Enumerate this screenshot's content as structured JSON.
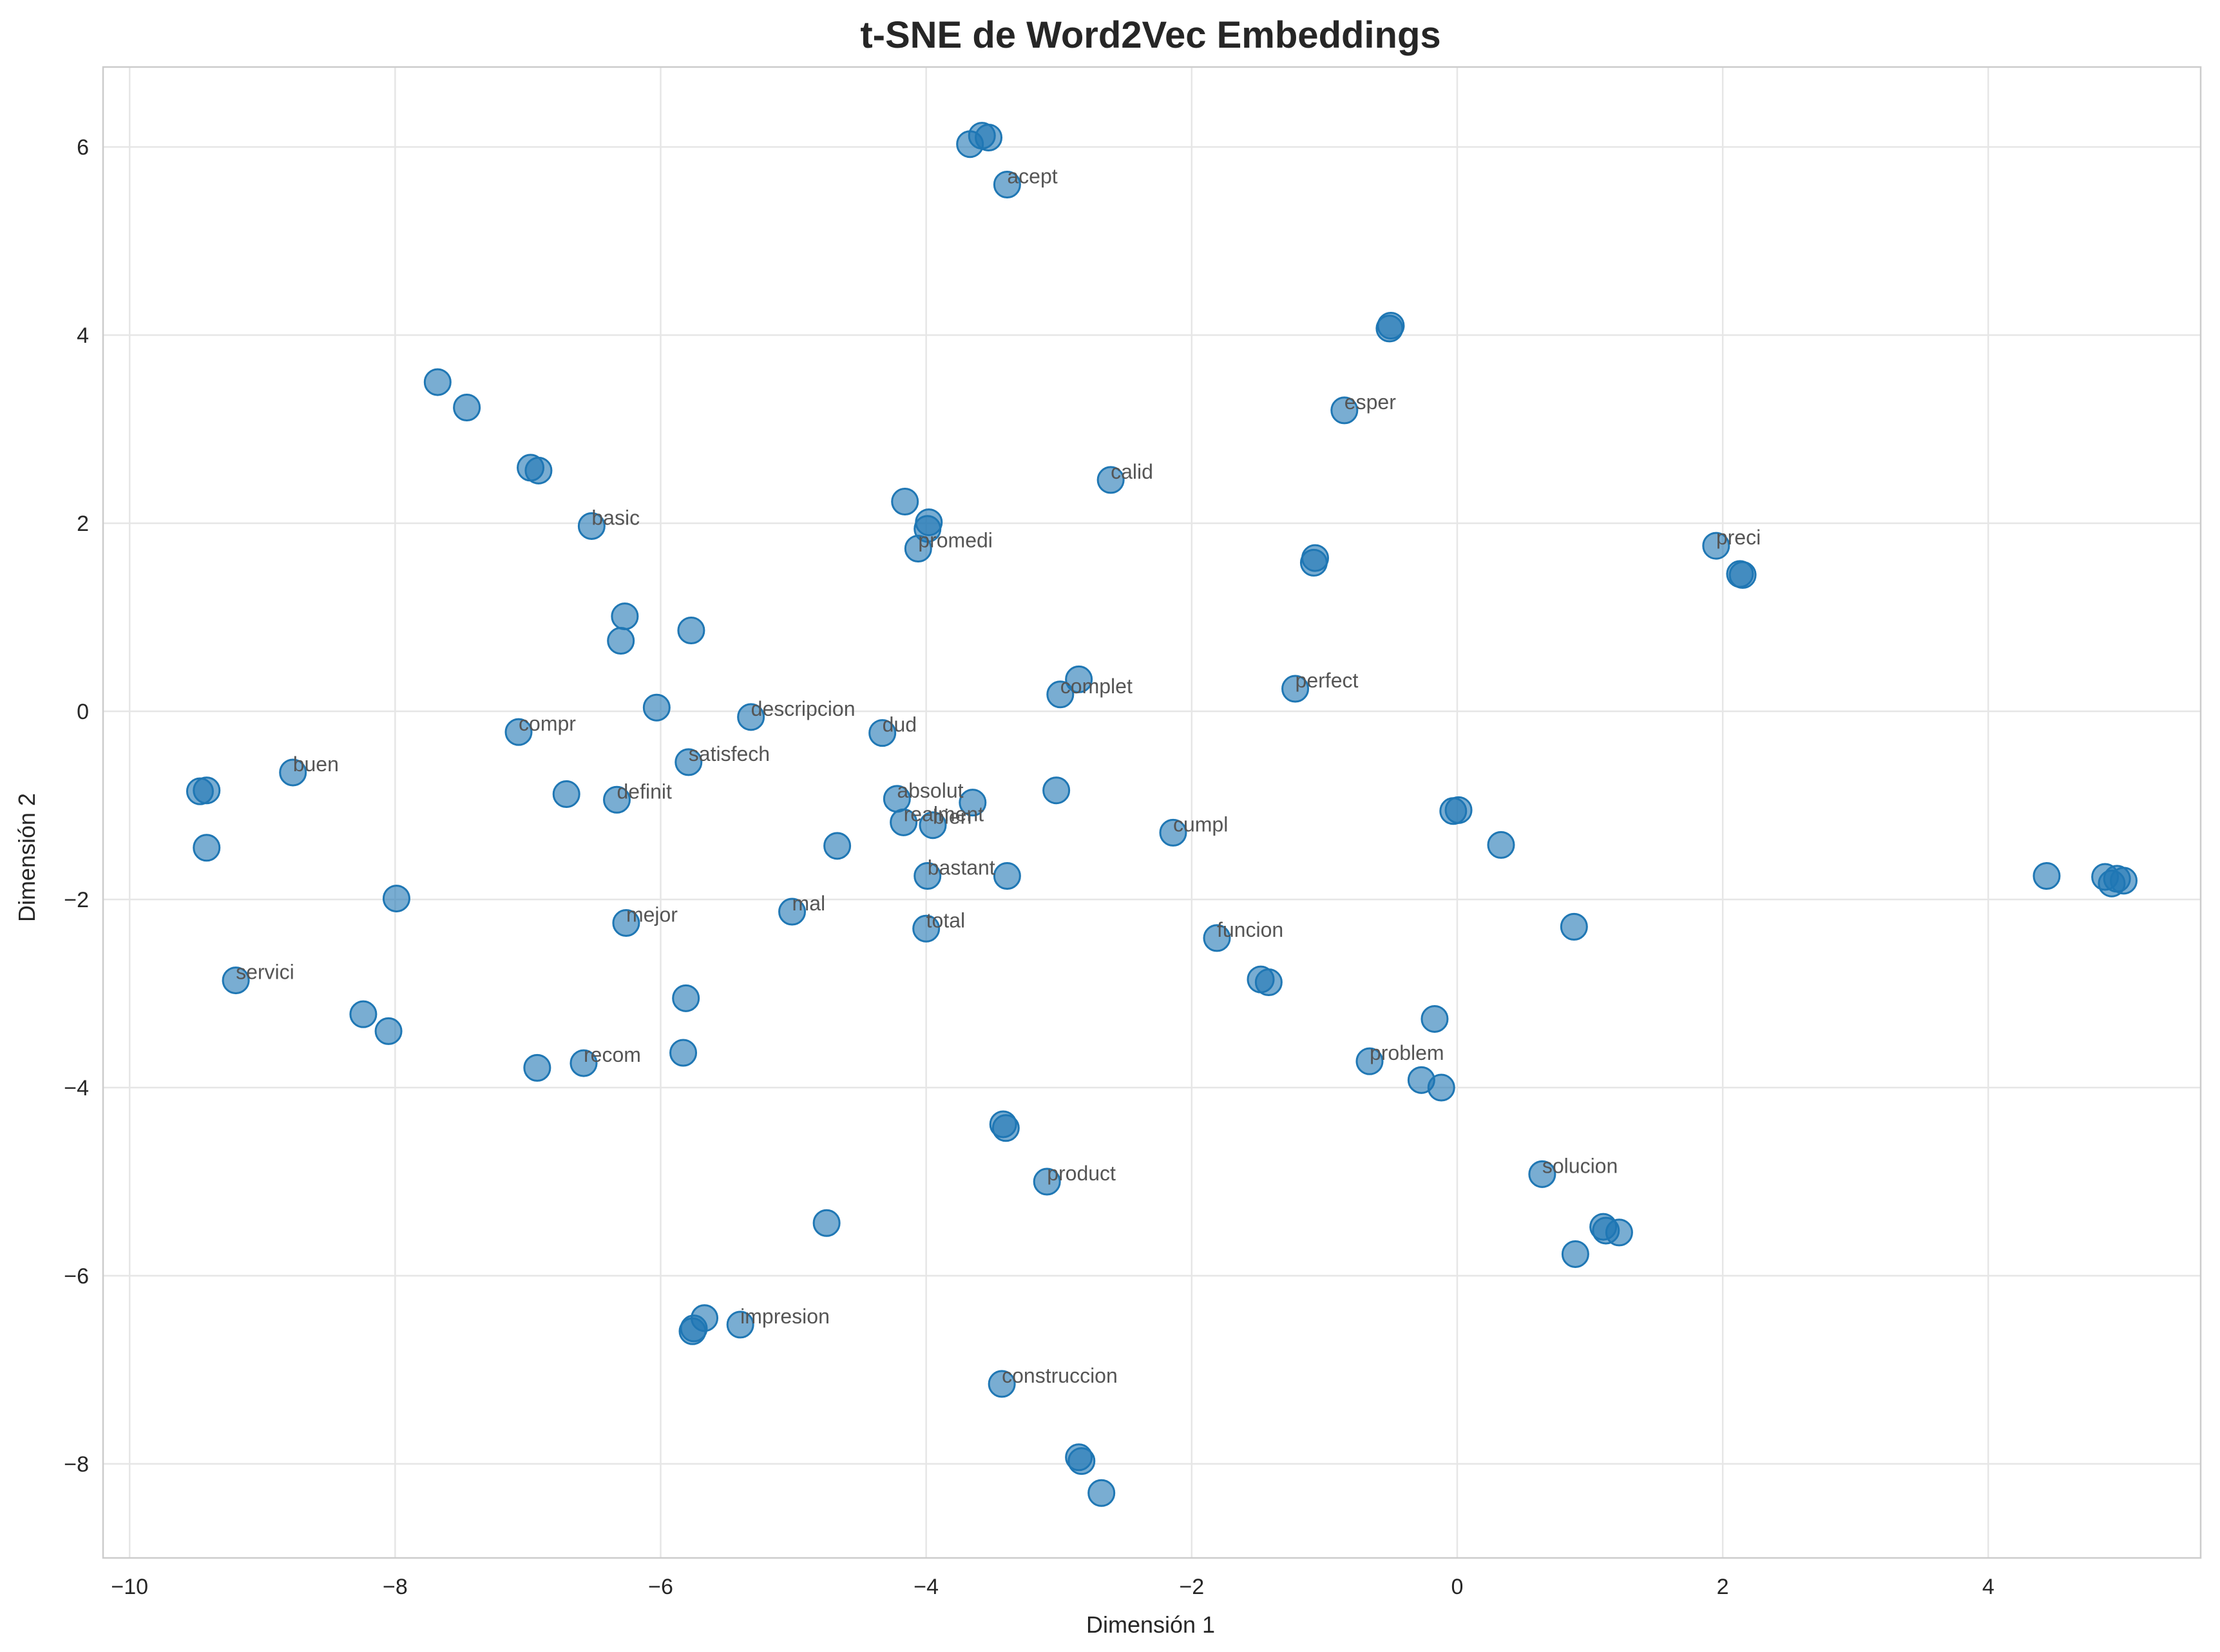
{
  "chart_data": {
    "type": "scatter",
    "title": "t-SNE de Word2Vec Embeddings",
    "xlabel": "Dimensión 1",
    "ylabel": "Dimensión 2",
    "xlim": [
      -10.2,
      5.6
    ],
    "ylim": [
      -9.0,
      6.85
    ],
    "xticks": [
      -10,
      -8,
      -6,
      -4,
      -2,
      0,
      2,
      4
    ],
    "yticks": [
      -8,
      -6,
      -4,
      -2,
      0,
      2,
      4,
      6
    ],
    "grid": true,
    "legend": "none",
    "point_color": "#1f77b4",
    "label_color": "#555555",
    "points": [
      {
        "x": -3.67,
        "y": 6.03,
        "label": ""
      },
      {
        "x": -3.58,
        "y": 6.12,
        "label": ""
      },
      {
        "x": -3.53,
        "y": 6.1,
        "label": ""
      },
      {
        "x": -3.39,
        "y": 5.6,
        "label": "acept"
      },
      {
        "x": -0.5,
        "y": 4.1,
        "label": ""
      },
      {
        "x": -0.51,
        "y": 4.07,
        "label": ""
      },
      {
        "x": -7.68,
        "y": 3.5,
        "label": ""
      },
      {
        "x": -7.46,
        "y": 3.23,
        "label": ""
      },
      {
        "x": -0.85,
        "y": 3.2,
        "label": "esper"
      },
      {
        "x": -6.98,
        "y": 2.59,
        "label": ""
      },
      {
        "x": -6.92,
        "y": 2.56,
        "label": ""
      },
      {
        "x": -2.61,
        "y": 2.46,
        "label": "calid"
      },
      {
        "x": -4.16,
        "y": 2.23,
        "label": ""
      },
      {
        "x": -3.98,
        "y": 2.01,
        "label": ""
      },
      {
        "x": -3.99,
        "y": 1.94,
        "label": ""
      },
      {
        "x": -6.52,
        "y": 1.97,
        "label": "basic"
      },
      {
        "x": -4.06,
        "y": 1.73,
        "label": "promedi"
      },
      {
        "x": 1.95,
        "y": 1.76,
        "label": "preci"
      },
      {
        "x": -1.07,
        "y": 1.63,
        "label": ""
      },
      {
        "x": -1.08,
        "y": 1.58,
        "label": ""
      },
      {
        "x": 2.13,
        "y": 1.46,
        "label": ""
      },
      {
        "x": 2.15,
        "y": 1.45,
        "label": ""
      },
      {
        "x": -6.27,
        "y": 1.01,
        "label": ""
      },
      {
        "x": -5.77,
        "y": 0.86,
        "label": ""
      },
      {
        "x": -6.3,
        "y": 0.75,
        "label": ""
      },
      {
        "x": -2.85,
        "y": 0.34,
        "label": ""
      },
      {
        "x": -1.22,
        "y": 0.24,
        "label": "perfect"
      },
      {
        "x": -2.99,
        "y": 0.18,
        "label": "complet"
      },
      {
        "x": -6.03,
        "y": 0.04,
        "label": ""
      },
      {
        "x": -5.32,
        "y": -0.06,
        "label": "descripcion"
      },
      {
        "x": -7.07,
        "y": -0.22,
        "label": "compr"
      },
      {
        "x": -4.33,
        "y": -0.23,
        "label": "dud"
      },
      {
        "x": -5.79,
        "y": -0.54,
        "label": "satisfech"
      },
      {
        "x": -8.77,
        "y": -0.65,
        "label": "buen"
      },
      {
        "x": -9.47,
        "y": -0.85,
        "label": ""
      },
      {
        "x": -9.42,
        "y": -0.84,
        "label": ""
      },
      {
        "x": -6.71,
        "y": -0.88,
        "label": ""
      },
      {
        "x": -6.33,
        "y": -0.94,
        "label": "definit"
      },
      {
        "x": -3.02,
        "y": -0.84,
        "label": ""
      },
      {
        "x": -4.22,
        "y": -0.93,
        "label": "absolut"
      },
      {
        "x": -3.65,
        "y": -0.97,
        "label": ""
      },
      {
        "x": -4.17,
        "y": -1.18,
        "label": "realment"
      },
      {
        "x": -3.95,
        "y": -1.21,
        "label": "bien"
      },
      {
        "x": -0.03,
        "y": -1.06,
        "label": ""
      },
      {
        "x": 0.01,
        "y": -1.05,
        "label": ""
      },
      {
        "x": -2.14,
        "y": -1.29,
        "label": "cumpl"
      },
      {
        "x": -9.42,
        "y": -1.45,
        "label": ""
      },
      {
        "x": -4.67,
        "y": -1.43,
        "label": ""
      },
      {
        "x": 0.33,
        "y": -1.42,
        "label": ""
      },
      {
        "x": -3.99,
        "y": -1.75,
        "label": "bastant"
      },
      {
        "x": -3.39,
        "y": -1.75,
        "label": ""
      },
      {
        "x": 4.44,
        "y": -1.75,
        "label": ""
      },
      {
        "x": 4.88,
        "y": -1.76,
        "label": ""
      },
      {
        "x": 4.93,
        "y": -1.83,
        "label": ""
      },
      {
        "x": 4.97,
        "y": -1.78,
        "label": ""
      },
      {
        "x": 5.02,
        "y": -1.8,
        "label": ""
      },
      {
        "x": -7.99,
        "y": -1.99,
        "label": ""
      },
      {
        "x": -5.01,
        "y": -2.13,
        "label": "mal"
      },
      {
        "x": -6.26,
        "y": -2.25,
        "label": "mejor"
      },
      {
        "x": 0.88,
        "y": -2.29,
        "label": ""
      },
      {
        "x": -4.0,
        "y": -2.31,
        "label": "total"
      },
      {
        "x": -1.81,
        "y": -2.41,
        "label": "funcion"
      },
      {
        "x": -9.2,
        "y": -2.86,
        "label": "servici"
      },
      {
        "x": -1.48,
        "y": -2.85,
        "label": ""
      },
      {
        "x": -1.42,
        "y": -2.88,
        "label": ""
      },
      {
        "x": -5.81,
        "y": -3.05,
        "label": ""
      },
      {
        "x": -8.24,
        "y": -3.22,
        "label": ""
      },
      {
        "x": -0.17,
        "y": -3.27,
        "label": ""
      },
      {
        "x": -8.05,
        "y": -3.4,
        "label": ""
      },
      {
        "x": -5.83,
        "y": -3.63,
        "label": ""
      },
      {
        "x": -0.66,
        "y": -3.72,
        "label": "problem"
      },
      {
        "x": -6.58,
        "y": -3.74,
        "label": "recom"
      },
      {
        "x": -6.93,
        "y": -3.79,
        "label": ""
      },
      {
        "x": -0.27,
        "y": -3.92,
        "label": ""
      },
      {
        "x": -0.12,
        "y": -4.0,
        "label": ""
      },
      {
        "x": -3.42,
        "y": -4.39,
        "label": ""
      },
      {
        "x": -3.4,
        "y": -4.43,
        "label": ""
      },
      {
        "x": 0.64,
        "y": -4.92,
        "label": "solucion"
      },
      {
        "x": -3.09,
        "y": -5.0,
        "label": "product"
      },
      {
        "x": -4.75,
        "y": -5.44,
        "label": ""
      },
      {
        "x": 1.1,
        "y": -5.48,
        "label": ""
      },
      {
        "x": 1.12,
        "y": -5.52,
        "label": ""
      },
      {
        "x": 1.22,
        "y": -5.54,
        "label": ""
      },
      {
        "x": 0.89,
        "y": -5.77,
        "label": ""
      },
      {
        "x": -5.67,
        "y": -6.45,
        "label": ""
      },
      {
        "x": -5.75,
        "y": -6.56,
        "label": ""
      },
      {
        "x": -5.76,
        "y": -6.59,
        "label": ""
      },
      {
        "x": -5.4,
        "y": -6.52,
        "label": "impresion"
      },
      {
        "x": -3.43,
        "y": -7.15,
        "label": "construccion"
      },
      {
        "x": -2.85,
        "y": -7.93,
        "label": ""
      },
      {
        "x": -2.83,
        "y": -7.97,
        "label": ""
      },
      {
        "x": -2.68,
        "y": -8.31,
        "label": ""
      }
    ]
  }
}
